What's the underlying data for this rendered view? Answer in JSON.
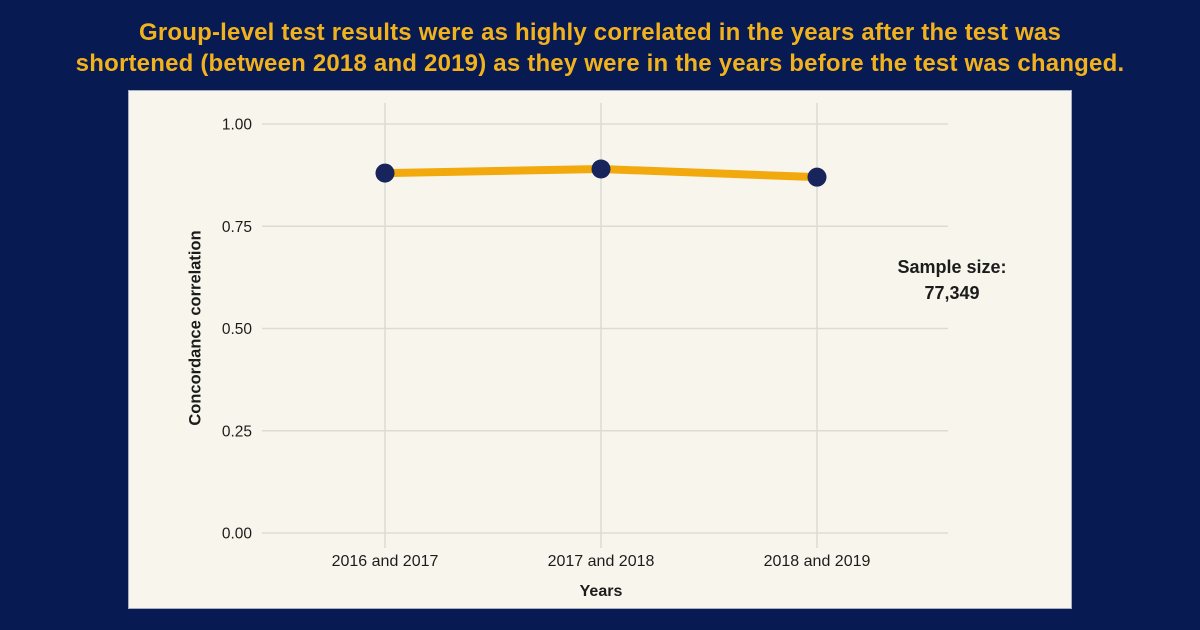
{
  "header": {
    "title_line1": "Group-level test results were as highly correlated in the years after the test was",
    "title_line2": "shortened (between 2018 and 2019) as they were in the years before the test was changed."
  },
  "colors": {
    "background": "#071A51",
    "panel": "#F8F6EC",
    "panel_border": "#A9ADC4",
    "title_gold": "#F2B21E",
    "axis_text": "#1C1C1C"
  },
  "chart_data": {
    "type": "line",
    "categories": [
      "2016 and 2017",
      "2017 and 2018",
      "2018 and 2019"
    ],
    "values": [
      0.88,
      0.89,
      0.87
    ],
    "xlabel": "Years",
    "ylabel": "Concordance correlation",
    "ylim": [
      0.0,
      1.0
    ],
    "yticks": [
      0.0,
      0.25,
      0.5,
      0.75,
      1.0
    ],
    "ytick_labels": [
      "0.00",
      "0.25",
      "0.50",
      "0.75",
      "1.00"
    ],
    "grid": true,
    "legend": "none",
    "annotation": {
      "label": "Sample size:",
      "value": "77,349"
    },
    "colors": {
      "line": "#F2A90D",
      "point": "#17255C",
      "gridline": "#DCDCD5",
      "tick_text": "#1C1C1C"
    }
  }
}
